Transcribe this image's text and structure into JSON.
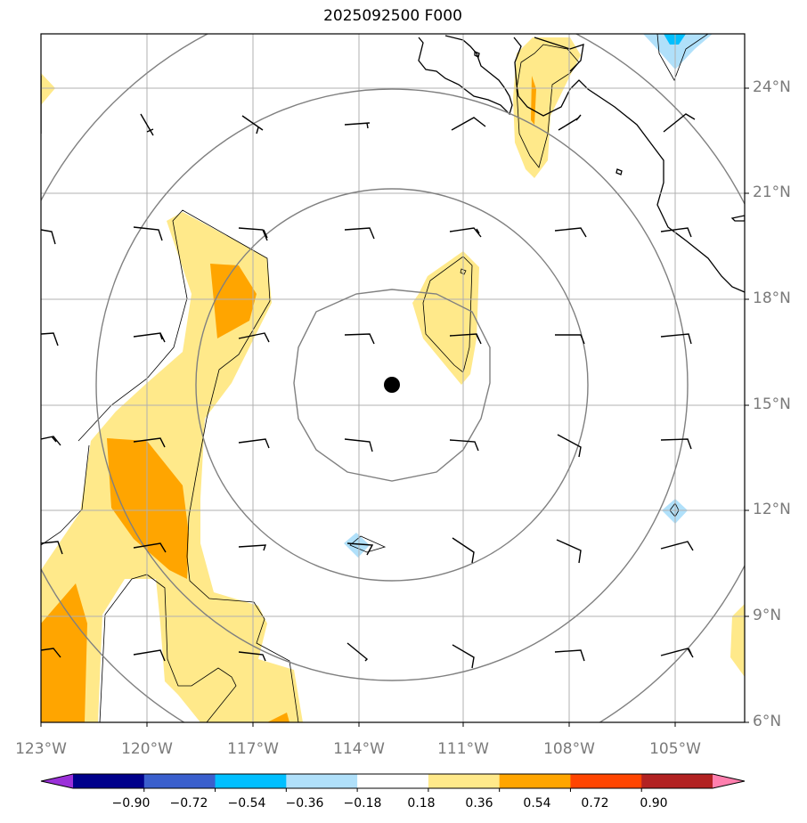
{
  "title": "2025092500 F000",
  "lat_labels": [
    "24°N",
    "21°N",
    "18°N",
    "15°N",
    "12°N",
    "9°N",
    "6°N"
  ],
  "lon_labels": [
    "123°W",
    "120°W",
    "117°W",
    "114°W",
    "111°W",
    "108°W",
    "105°W"
  ],
  "colorbar": {
    "ticks": [
      "−0.90",
      "−0.72",
      "−0.54",
      "−0.36",
      "−0.18",
      "0.18",
      "0.36",
      "0.54",
      "0.72",
      "0.90"
    ],
    "colors": [
      "#9b30d9",
      "#00008b",
      "#3a5fcd",
      "#00bfff",
      "#b0e0fa",
      "#ffffff",
      "#ffe98a",
      "#ffa500",
      "#ff4500",
      "#b22222",
      "#ff7fae"
    ]
  },
  "center_marker": {
    "lon": -113.0,
    "lat": 15.6
  },
  "colors": {
    "coast": "#000000",
    "grid": "#b0b0b0",
    "rings": "#808080"
  }
}
